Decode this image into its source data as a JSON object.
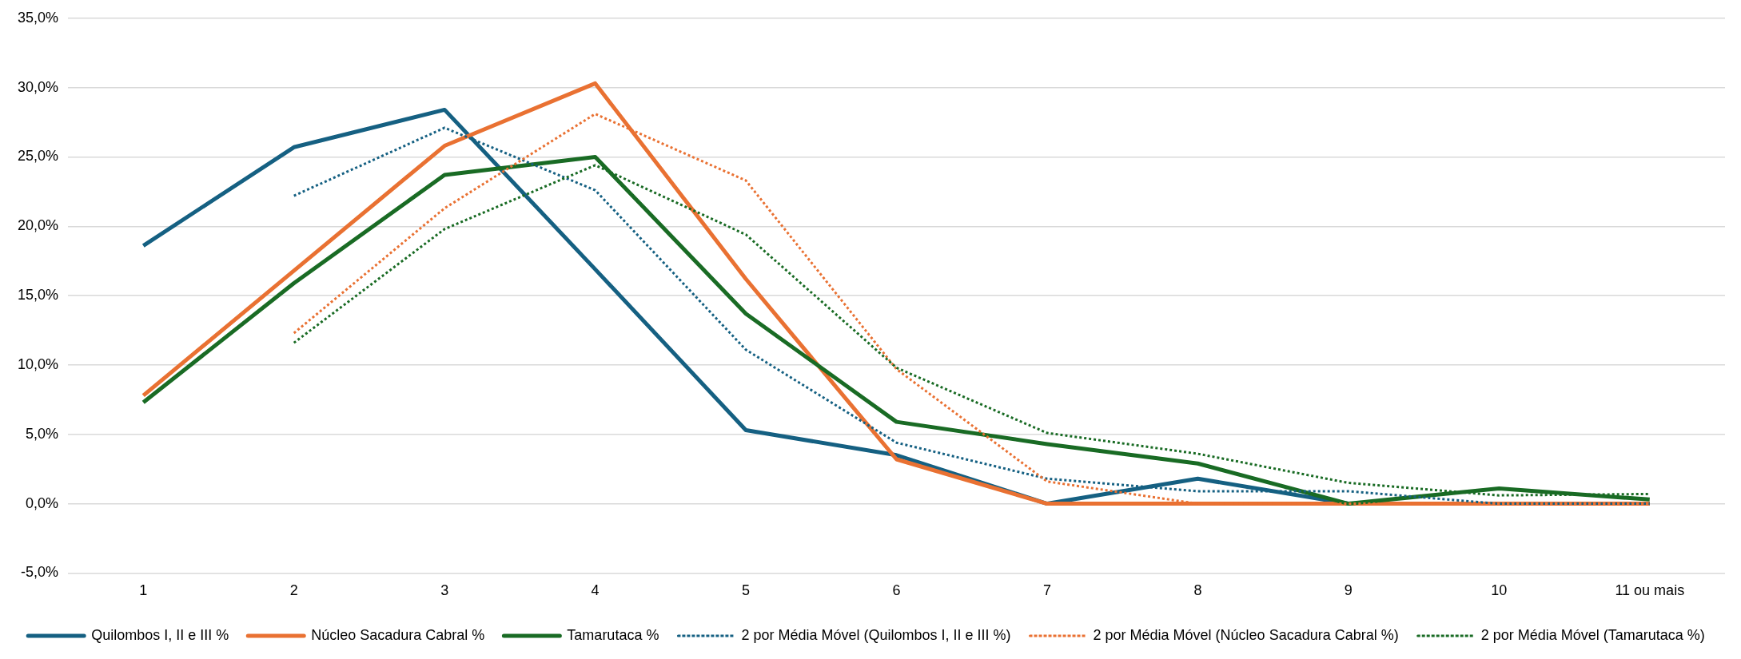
{
  "chart_data": {
    "type": "line",
    "categories": [
      "1",
      "2",
      "3",
      "4",
      "5",
      "6",
      "7",
      "8",
      "9",
      "10",
      "11 ou mais"
    ],
    "series": [
      {
        "name": "Quilombos I, II e III %",
        "color": "#156082",
        "line_style": "solid",
        "values": [
          18.6,
          25.7,
          28.4,
          16.9,
          5.3,
          3.5,
          0,
          1.8,
          0,
          0,
          0
        ]
      },
      {
        "name": "Núcleo Sacadura Cabral %",
        "color": "#e97132",
        "line_style": "solid",
        "values": [
          7.8,
          16.8,
          25.8,
          30.3,
          16.2,
          3.2,
          0,
          0,
          0,
          0,
          0
        ]
      },
      {
        "name": "Tamarutaca %",
        "color": "#196b24",
        "line_style": "solid",
        "values": [
          7.3,
          15.9,
          23.7,
          25.0,
          13.7,
          5.9,
          4.3,
          2.9,
          0,
          1.1,
          0.3
        ]
      },
      {
        "name": "2 por Média Móvel (Quilombos I, II e III %)",
        "color": "#156082",
        "line_style": "dotted",
        "values": [
          null,
          22.2,
          27.1,
          22.6,
          11.1,
          4.4,
          1.8,
          0.9,
          0.9,
          0,
          0
        ]
      },
      {
        "name": "2 por Média Móvel (Núcleo Sacadura Cabral %)",
        "color": "#e97132",
        "line_style": "dotted",
        "values": [
          null,
          12.3,
          21.3,
          28.1,
          23.3,
          9.7,
          1.6,
          0,
          0,
          0,
          0
        ]
      },
      {
        "name": "2 por Média Móvel (Tamarutaca %)",
        "color": "#196b24",
        "line_style": "dotted",
        "values": [
          null,
          11.6,
          19.8,
          24.4,
          19.4,
          9.8,
          5.1,
          3.6,
          1.5,
          0.6,
          0.7
        ]
      }
    ],
    "ylim": [
      -5,
      35
    ],
    "yticks": [
      {
        "value": -5,
        "label": "-5,0%"
      },
      {
        "value": 0,
        "label": "0,0%"
      },
      {
        "value": 5,
        "label": "5,0%"
      },
      {
        "value": 10,
        "label": "10,0%"
      },
      {
        "value": 15,
        "label": "15,0%"
      },
      {
        "value": 20,
        "label": "20,0%"
      },
      {
        "value": 25,
        "label": "25,0%"
      },
      {
        "value": 30,
        "label": "30,0%"
      },
      {
        "value": 35,
        "label": "35,0%"
      }
    ],
    "grid": "y",
    "legend": "bottom",
    "marker": "none"
  }
}
